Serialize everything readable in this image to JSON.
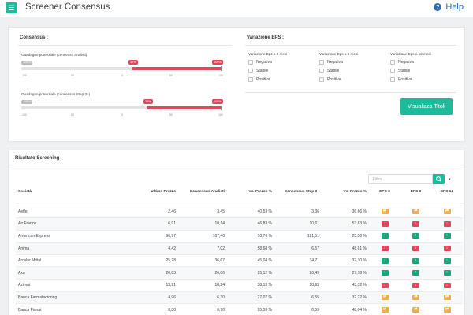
{
  "header": {
    "title": "Screener Consensus",
    "help_label": "Help",
    "menu_icon": "hamburger-icon"
  },
  "consensus": {
    "title": "Consensus :",
    "slider1": {
      "label": "Guadagno potenziale (consenso analisti)",
      "min_badge": "-100%",
      "low_badge": "10%",
      "high_badge": "100%",
      "ticks": [
        "-100",
        "-50",
        "0",
        "50",
        "100"
      ]
    },
    "slider2": {
      "label": "Guadagno potenziale (consensus Step 3+)",
      "min_badge": "-100%",
      "low_badge": "25%",
      "high_badge": "100%",
      "ticks": [
        "-100",
        "-50",
        "0",
        "50",
        "100"
      ]
    }
  },
  "eps": {
    "title": "Variazione EPS :",
    "groups": [
      {
        "title": "Variazione Eps a 3 mesi",
        "options": [
          "Negativa",
          "Stabile",
          "Positiva"
        ]
      },
      {
        "title": "Variazione Eps a 6 mesi",
        "options": [
          "Negativa",
          "Stabile",
          "Positiva"
        ]
      },
      {
        "title": "Variazione Eps a 12 mesi",
        "options": [
          "Negativa",
          "Stabile",
          "Positiva"
        ]
      }
    ],
    "button_label": "Visualizza Titoli"
  },
  "results": {
    "title": "Risultato Screening",
    "filter_placeholder": "Filtra",
    "columns": [
      "Società",
      "Ultimo Prezzo",
      "Consensus Analisti",
      "Vs. Prezzo %",
      "Consensus Step 3+",
      "Vs. Prezzo %",
      "EPS 3",
      "EPS 6",
      "EPS 12"
    ],
    "rows": [
      {
        "name": "Aeffe",
        "price": "2,46",
        "cons": "3,45",
        "vs1": "40,53 %",
        "step": "3,36",
        "vs2": "36,66 %",
        "eps": [
          "flat",
          "flat",
          "flat"
        ]
      },
      {
        "name": "Air France",
        "price": "6,91",
        "cons": "10,14",
        "vs1": "46,83 %",
        "step": "10,61",
        "vs2": "53,63 %",
        "eps": [
          "down",
          "down",
          "down"
        ]
      },
      {
        "name": "American Express",
        "price": "96,97",
        "cons": "107,40",
        "vs1": "10,76 %",
        "step": "121,51",
        "vs2": "25,30 %",
        "eps": [
          "up",
          "up",
          "up"
        ]
      },
      {
        "name": "Anima",
        "price": "4,42",
        "cons": "7,02",
        "vs1": "58,68 %",
        "step": "6,57",
        "vs2": "48,61 %",
        "eps": [
          "down",
          "down",
          "down"
        ]
      },
      {
        "name": "Arcelor Mittal",
        "price": "25,28",
        "cons": "36,67",
        "vs1": "45,04 %",
        "step": "34,71",
        "vs2": "37,30 %",
        "eps": [
          "up",
          "up",
          "up"
        ]
      },
      {
        "name": "Axa",
        "price": "20,83",
        "cons": "26,06",
        "vs1": "25,12 %",
        "step": "26,49",
        "vs2": "27,18 %",
        "eps": [
          "up",
          "up",
          "up"
        ]
      },
      {
        "name": "Azimut",
        "price": "13,21",
        "cons": "18,24",
        "vs1": "38,13 %",
        "step": "18,93",
        "vs2": "43,32 %",
        "eps": [
          "down",
          "down",
          "down"
        ]
      },
      {
        "name": "Banca Farmafactoring",
        "price": "4,96",
        "cons": "6,30",
        "vs1": "27,07 %",
        "step": "6,55",
        "vs2": "32,22 %",
        "eps": [
          "flat",
          "flat",
          "flat"
        ]
      },
      {
        "name": "Banca Finnat",
        "price": "0,36",
        "cons": "0,70",
        "vs1": "95,53 %",
        "step": "0,53",
        "vs2": "48,04 %",
        "eps": [
          "flat",
          "flat",
          "flat"
        ]
      }
    ]
  },
  "colors": {
    "accent": "#1abc9c",
    "red": "#e0475a",
    "orange": "#f0ad4e",
    "green": "#1aa57f",
    "link": "#2b6cb0"
  }
}
